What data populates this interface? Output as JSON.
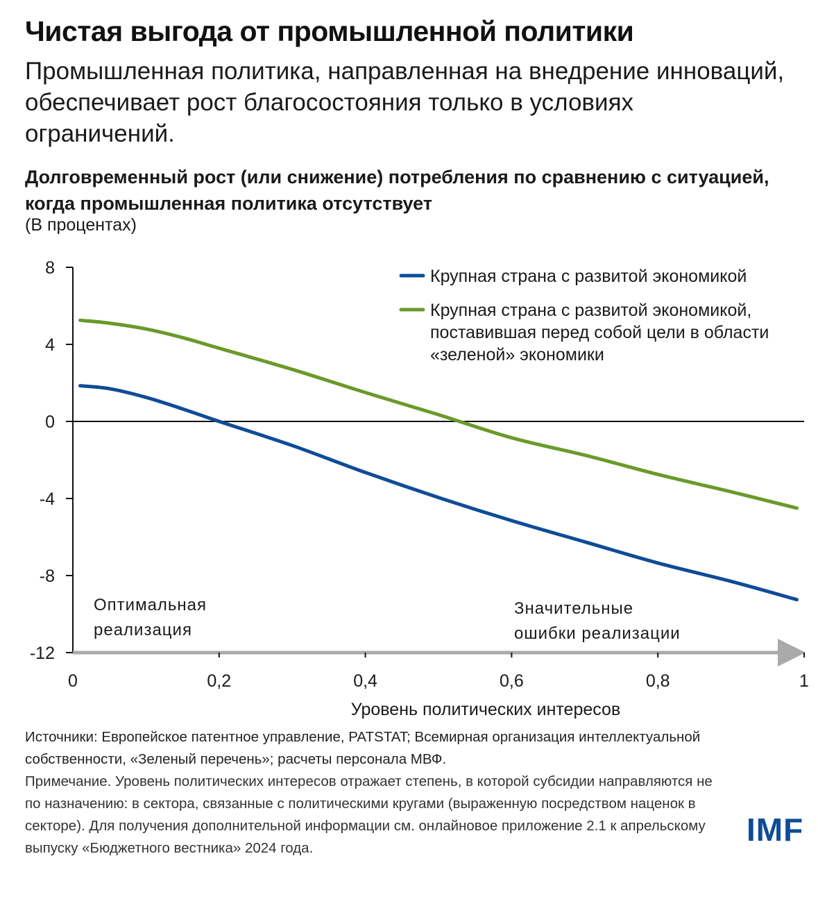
{
  "header": {
    "title": "Чистая выгода от промышленной политики",
    "subtitle": "Промышленная политика, направленная на внедрение инноваций, обеспечивает рост благосостояния только в условиях ограничений."
  },
  "chart_data": {
    "type": "line",
    "title": "Долговременный рост (или снижение) потребления по сравнению с ситуацией, когда промышленная политика отсутствует",
    "subtitle": "(В процентах)",
    "xlabel": "Уровень политических интересов",
    "ylabel": "",
    "xlim": [
      0,
      1
    ],
    "ylim": [
      -12,
      8
    ],
    "x_ticks": [
      0,
      0.2,
      0.4,
      0.6,
      0.8,
      1
    ],
    "x_tick_labels": [
      "0",
      "0,2",
      "0,4",
      "0,6",
      "0,8",
      "1"
    ],
    "y_ticks": [
      8,
      4,
      0,
      -4,
      -8,
      -12
    ],
    "y_tick_labels": [
      "8",
      "4",
      "0",
      "-4",
      "-8",
      "-12"
    ],
    "grid": false,
    "legend_position": "top-right",
    "x": [
      0.01,
      0.05,
      0.1,
      0.15,
      0.2,
      0.3,
      0.4,
      0.5,
      0.6,
      0.7,
      0.8,
      0.9,
      0.99
    ],
    "series": [
      {
        "name": "Крупная страна с развитой экономикой",
        "color": "#0f4c97",
        "values": [
          1.85,
          1.7,
          1.25,
          0.65,
          0.0,
          -1.25,
          -2.65,
          -3.95,
          -5.15,
          -6.25,
          -7.35,
          -8.3,
          -9.25
        ]
      },
      {
        "name": "Крупная страна с развитой экономикой, поставившая перед собой цели в области «зеленой» экономики",
        "color": "#6a9a2a",
        "values": [
          5.25,
          5.1,
          4.8,
          4.35,
          3.8,
          2.7,
          1.5,
          0.35,
          -0.85,
          -1.75,
          -2.75,
          -3.65,
          -4.5
        ]
      }
    ],
    "legend_lines": [
      [
        "Крупная страна с развитой экономикой"
      ],
      [
        "Крупная страна с развитой экономикой,",
        "поставившая перед собой цели в области",
        "«зеленой» экономики"
      ]
    ],
    "annotations": {
      "left": [
        "Оптимальная",
        "реализация"
      ],
      "right": [
        "Значительные",
        "ошибки реализации"
      ]
    }
  },
  "footer": {
    "sources": "Источники: Европейское патентное управление, PATSTAT; Всемирная организация интеллектуальной собственности, «Зеленый перечень»; расчеты персонала МВФ.",
    "note": "Примечание. Уровень политических интересов отражает степень, в которой субсидии направляются не по назначению: в сектора, связанные с политическими кругами (выраженную посредством наценок в секторе). Для получения дополнительной информации см. онлайновое приложение 2.1 к апрельскому выпуску «Бюджетного вестника» 2024 года."
  },
  "logo": {
    "text": "IMF",
    "color": "#0f4c97"
  }
}
